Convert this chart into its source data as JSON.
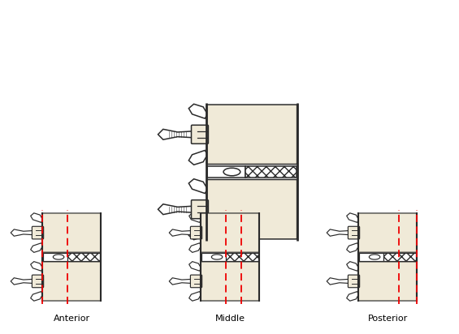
{
  "labels": [
    "Anterior",
    "Middle",
    "Posterior"
  ],
  "bg_color": "#ffffff",
  "bone_color": "#f0ead8",
  "bone_outline": "#2a2a2a",
  "red_dashed": "#ee0000",
  "label_fontsize": 8,
  "hatch_color": "#444444"
}
